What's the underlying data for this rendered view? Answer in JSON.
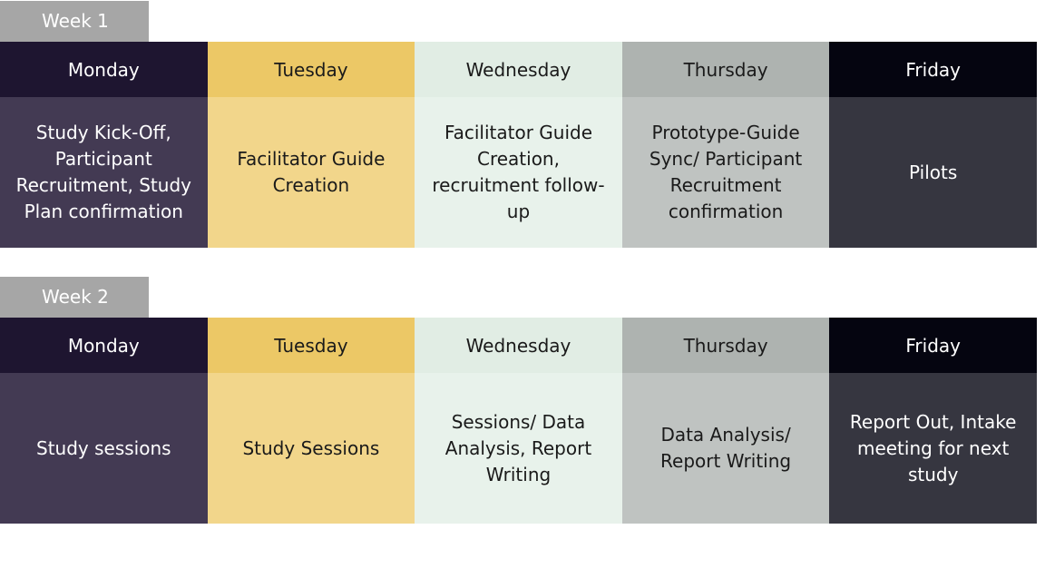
{
  "weeks": [
    {
      "label": "Week 1",
      "days": [
        {
          "name": "Monday",
          "task": "Study Kick-Off, Participant Recruitment, Study Plan confirmation"
        },
        {
          "name": "Tuesday",
          "task": "Facilitator Guide Creation"
        },
        {
          "name": "Wednesday",
          "task": "Facilitator Guide Creation, recruitment follow-up"
        },
        {
          "name": "Thursday",
          "task": "Prototype-Guide Sync/ Participant Recruitment confirmation"
        },
        {
          "name": "Friday",
          "task": "Pilots"
        }
      ]
    },
    {
      "label": "Week 2",
      "days": [
        {
          "name": "Monday",
          "task": "Study sessions"
        },
        {
          "name": "Tuesday",
          "task": "Study Sessions"
        },
        {
          "name": "Wednesday",
          "task": "Sessions/ Data Analysis, Report Writing"
        },
        {
          "name": "Thursday",
          "task": "Data Analysis/ Report Writing"
        },
        {
          "name": "Friday",
          "task": "Report Out, Intake meeting for next study"
        }
      ]
    }
  ],
  "colors": {
    "week_tab": "#a6a6a6",
    "monday": "#433a53",
    "tuesday": "#f2d68b",
    "wednesday": "#e8f2eb",
    "thursday": "#bfc3c1",
    "friday": "#363640"
  }
}
